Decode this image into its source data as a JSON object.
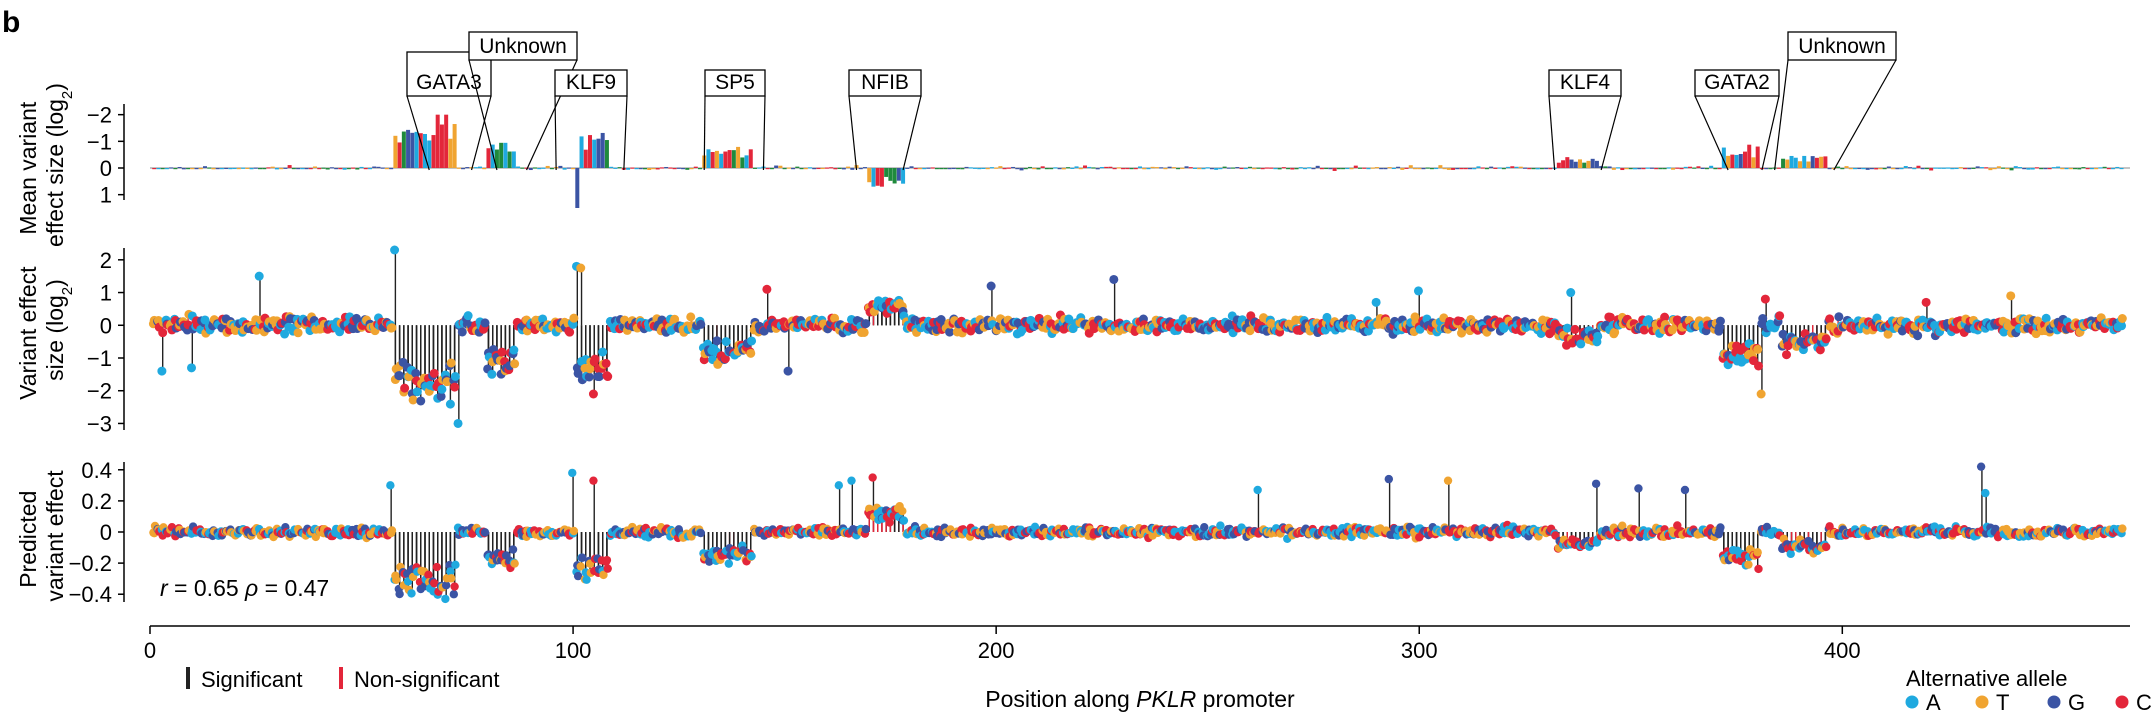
{
  "panel_label": "b",
  "colors": {
    "A": "#1fa9df",
    "T": "#f0a431",
    "G": "#3b54a4",
    "C": "#e3263a",
    "significant": "#222222",
    "non_significant": "#e3263a",
    "logo_green": "#1f8a3c"
  },
  "chart_data": [
    {
      "id": "logo",
      "type": "bar",
      "ylabel_line1": "Mean variant",
      "ylabel_line2": "effect size (log",
      "ylabel_sub": "2",
      "ylabel_close": ")",
      "yticks": [
        "−2",
        "−1",
        "0",
        "1"
      ],
      "yticks_values": [
        -2,
        -1,
        0,
        1
      ],
      "ylim": [
        -2.4,
        1.2
      ],
      "inverted_y": true,
      "motifs": [
        {
          "name": "GATA3",
          "start": 66,
          "end": 76
        },
        {
          "name": "Unknown",
          "start": 82,
          "end": 89
        },
        {
          "name": "KLF9",
          "start": 96,
          "end": 112
        },
        {
          "name": "SP5",
          "start": 131,
          "end": 145
        },
        {
          "name": "NFIB",
          "start": 167,
          "end": 178
        },
        {
          "name": "KLF4",
          "start": 332,
          "end": 343
        },
        {
          "name": "GATA2",
          "start": 373,
          "end": 381
        },
        {
          "name": "Unknown",
          "start": 384,
          "end": 398
        }
      ]
    },
    {
      "id": "measured",
      "type": "scatter",
      "ylabel_line1": "Variant effect",
      "ylabel_line2": "size (log",
      "ylabel_sub": "2",
      "ylabel_close": ")",
      "yticks": [
        "2",
        "1",
        "0",
        "−1",
        "−2",
        "−3"
      ],
      "yticks_values": [
        2,
        1,
        0,
        -1,
        -2,
        -3
      ],
      "ylim": [
        -3.2,
        2.3
      ]
    },
    {
      "id": "predicted",
      "type": "scatter",
      "ylabel_line1": "Predicted",
      "ylabel_line2": "variant effect",
      "yticks": [
        "0.4",
        "0.2",
        "0",
        "−0.2",
        "−0.4"
      ],
      "yticks_values": [
        0.4,
        0.2,
        0,
        -0.2,
        -0.4
      ],
      "ylim": [
        -0.45,
        0.45
      ],
      "stat_r_label": "r",
      "stat_r_value": " = 0.65 ",
      "stat_rho_label": "ρ",
      "stat_rho_value": " = 0.47"
    }
  ],
  "x_axis": {
    "label_prefix": "Position along ",
    "label_italic": "PKLR",
    "label_suffix": " promoter",
    "ticks": [
      "0",
      "100",
      "200",
      "300",
      "400"
    ],
    "tick_values": [
      0,
      100,
      200,
      300,
      400
    ],
    "xlim": [
      0,
      468
    ]
  },
  "legend_significance": {
    "significant": "Significant",
    "non_significant": "Non-significant"
  },
  "legend_allele": {
    "title": "Alternative allele",
    "items": [
      {
        "label": "A",
        "color": "#1fa9df"
      },
      {
        "label": "T",
        "color": "#f0a431"
      },
      {
        "label": "G",
        "color": "#3b54a4"
      },
      {
        "label": "C",
        "color": "#e3263a"
      }
    ]
  }
}
